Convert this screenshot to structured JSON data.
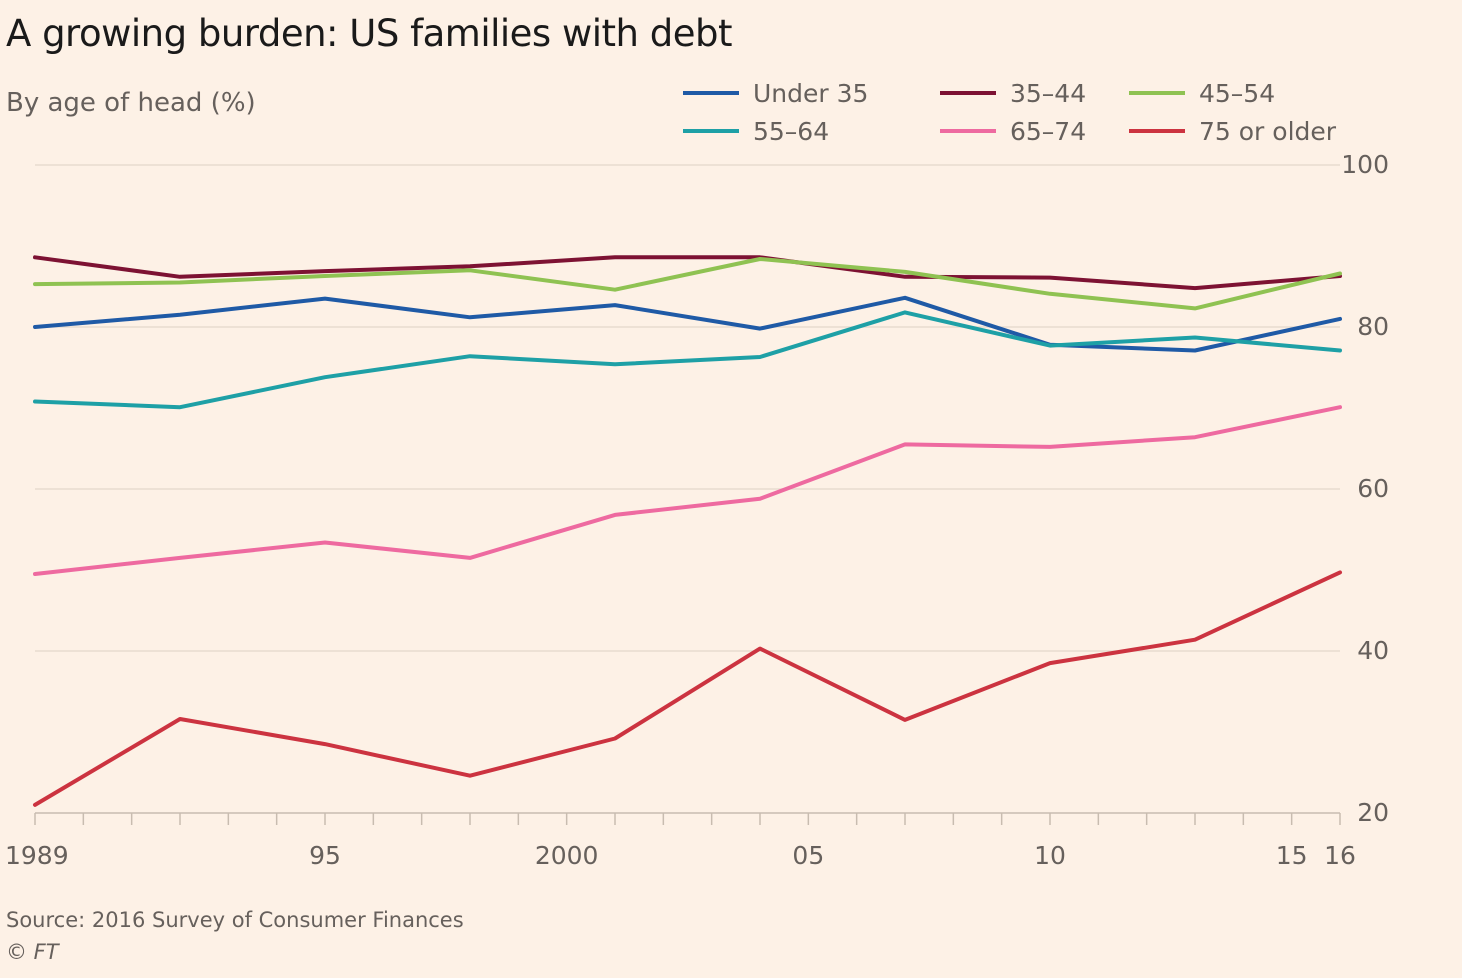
{
  "title": "A growing burden: US families with debt",
  "subtitle": "By age of head (%)",
  "source": "Source: 2016 Survey of Consumer Finances",
  "credit": "© FT",
  "colors": {
    "background": "#fdf1e6",
    "grid": "#e8dccf",
    "axis": "#c8bcb0"
  },
  "chart_data": {
    "type": "line",
    "title": "A growing burden: US families with debt",
    "subtitle": "By age of head (%)",
    "xlabel": "",
    "ylabel": "",
    "xlim": [
      1989,
      2016
    ],
    "ylim": [
      20,
      100
    ],
    "yticks": [
      20,
      40,
      60,
      80,
      100
    ],
    "xticks": [
      {
        "value": 1989,
        "label": "1989"
      },
      {
        "value": 1995,
        "label": "95"
      },
      {
        "value": 2000,
        "label": "2000"
      },
      {
        "value": 2005,
        "label": "05"
      },
      {
        "value": 2010,
        "label": "10"
      },
      {
        "value": 2015,
        "label": "15"
      },
      {
        "value": 2016,
        "label": "16"
      }
    ],
    "grid": true,
    "legend_position": "top-right",
    "x": [
      1989,
      1992,
      1995,
      1998,
      2001,
      2004,
      2007,
      2010,
      2013,
      2016
    ],
    "series": [
      {
        "name": "Under 35",
        "color": "#1f5aa6",
        "values": [
          80.0,
          81.5,
          83.5,
          81.2,
          82.7,
          79.8,
          83.6,
          77.8,
          77.1,
          81.0
        ]
      },
      {
        "name": "35–44",
        "color": "#7d1233",
        "values": [
          88.6,
          86.2,
          86.9,
          87.5,
          88.6,
          88.6,
          86.2,
          86.1,
          84.8,
          86.3
        ]
      },
      {
        "name": "45–54",
        "color": "#8fc252",
        "values": [
          85.3,
          85.5,
          86.3,
          87.0,
          84.6,
          88.4,
          86.8,
          84.1,
          82.3,
          86.6
        ]
      },
      {
        "name": "55–64",
        "color": "#1ea0a6",
        "values": [
          70.8,
          70.1,
          73.8,
          76.4,
          75.4,
          76.3,
          81.8,
          77.7,
          78.7,
          77.1
        ]
      },
      {
        "name": "65–74",
        "color": "#ee6aa0",
        "values": [
          49.5,
          51.5,
          53.4,
          51.5,
          56.8,
          58.8,
          65.5,
          65.2,
          66.4,
          70.1
        ]
      },
      {
        "name": "75 or older",
        "color": "#cc3340",
        "values": [
          21.0,
          31.6,
          28.5,
          24.6,
          29.2,
          40.3,
          31.5,
          38.5,
          41.4,
          49.7
        ]
      }
    ]
  }
}
